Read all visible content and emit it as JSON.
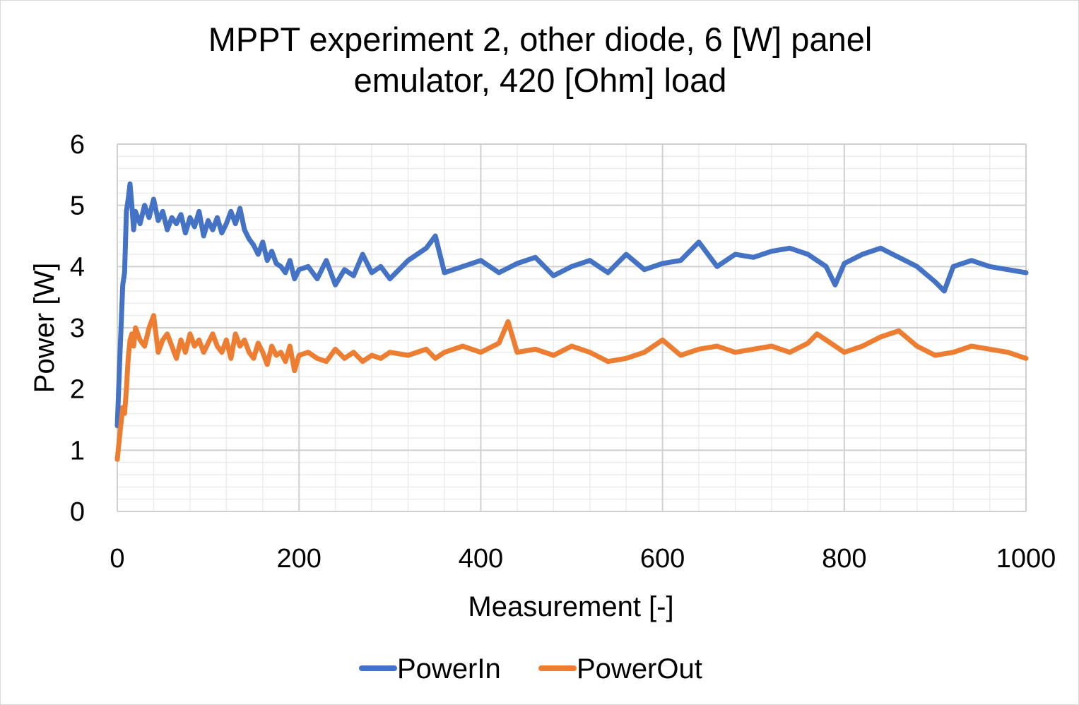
{
  "chart_data": {
    "type": "line",
    "title_lines": [
      "MPPT experiment 2, other diode, 6 [W] panel",
      "emulator, 420 [Ohm] load"
    ],
    "xlabel": "Measurement [-]",
    "ylabel": "Power [W]",
    "xlim": [
      0,
      1000
    ],
    "ylim": [
      0,
      6
    ],
    "xticks": [
      "0",
      "200",
      "400",
      "600",
      "800",
      "1000"
    ],
    "yticks": [
      "0",
      "1",
      "2",
      "3",
      "4",
      "5",
      "6"
    ],
    "grid": "major and minor",
    "legend_position": "bottom",
    "series": [
      {
        "name": "PowerIn",
        "color": "#4472c4",
        "x": [
          0,
          3,
          6,
          8,
          10,
          12,
          14,
          16,
          18,
          20,
          25,
          30,
          35,
          40,
          45,
          50,
          55,
          60,
          65,
          70,
          75,
          80,
          85,
          90,
          95,
          100,
          105,
          110,
          115,
          120,
          125,
          130,
          135,
          140,
          145,
          150,
          155,
          160,
          165,
          170,
          175,
          180,
          185,
          190,
          195,
          200,
          210,
          220,
          230,
          240,
          250,
          260,
          270,
          280,
          290,
          300,
          320,
          340,
          350,
          360,
          380,
          400,
          420,
          440,
          460,
          480,
          500,
          520,
          540,
          560,
          580,
          600,
          620,
          640,
          660,
          680,
          700,
          720,
          740,
          760,
          780,
          790,
          800,
          820,
          840,
          860,
          880,
          900,
          910,
          920,
          940,
          960,
          980,
          1000
        ],
        "values": [
          1.4,
          2.6,
          3.7,
          3.9,
          4.9,
          5.1,
          5.35,
          5.0,
          4.6,
          4.9,
          4.7,
          5.0,
          4.8,
          5.1,
          4.75,
          4.9,
          4.6,
          4.8,
          4.7,
          4.85,
          4.55,
          4.8,
          4.65,
          4.9,
          4.5,
          4.75,
          4.6,
          4.8,
          4.55,
          4.7,
          4.9,
          4.7,
          4.95,
          4.6,
          4.45,
          4.35,
          4.2,
          4.4,
          4.1,
          4.25,
          4.05,
          4.0,
          3.9,
          4.1,
          3.8,
          3.95,
          4.0,
          3.8,
          4.1,
          3.7,
          3.95,
          3.85,
          4.2,
          3.9,
          4.0,
          3.8,
          4.1,
          4.3,
          4.5,
          3.9,
          4.0,
          4.1,
          3.9,
          4.05,
          4.15,
          3.85,
          4.0,
          4.1,
          3.9,
          4.2,
          3.95,
          4.05,
          4.1,
          4.4,
          4.0,
          4.2,
          4.15,
          4.25,
          4.3,
          4.2,
          4.0,
          3.7,
          4.05,
          4.2,
          4.3,
          4.15,
          4.0,
          3.75,
          3.6,
          4.0,
          4.1,
          4.0,
          3.95,
          3.9
        ]
      },
      {
        "name": "PowerOut",
        "color": "#ed7d31",
        "x": [
          0,
          3,
          6,
          8,
          10,
          12,
          14,
          16,
          18,
          20,
          25,
          30,
          35,
          40,
          45,
          50,
          55,
          60,
          65,
          70,
          75,
          80,
          85,
          90,
          95,
          100,
          105,
          110,
          115,
          120,
          125,
          130,
          135,
          140,
          145,
          150,
          155,
          160,
          165,
          170,
          175,
          180,
          185,
          190,
          195,
          200,
          210,
          220,
          230,
          240,
          250,
          260,
          270,
          280,
          290,
          300,
          320,
          340,
          350,
          360,
          380,
          400,
          420,
          430,
          440,
          460,
          480,
          500,
          520,
          540,
          560,
          580,
          600,
          620,
          640,
          660,
          680,
          700,
          720,
          740,
          760,
          770,
          780,
          800,
          820,
          840,
          860,
          880,
          900,
          920,
          940,
          960,
          980,
          1000
        ],
        "values": [
          0.85,
          1.3,
          1.7,
          1.6,
          2.0,
          2.5,
          2.8,
          2.9,
          2.7,
          3.0,
          2.8,
          2.7,
          3.0,
          3.2,
          2.6,
          2.8,
          2.9,
          2.7,
          2.5,
          2.8,
          2.6,
          2.9,
          2.7,
          2.8,
          2.6,
          2.75,
          2.9,
          2.7,
          2.6,
          2.8,
          2.5,
          2.9,
          2.7,
          2.8,
          2.6,
          2.5,
          2.75,
          2.6,
          2.4,
          2.7,
          2.55,
          2.6,
          2.45,
          2.7,
          2.3,
          2.55,
          2.6,
          2.5,
          2.45,
          2.65,
          2.5,
          2.6,
          2.45,
          2.55,
          2.5,
          2.6,
          2.55,
          2.65,
          2.5,
          2.6,
          2.7,
          2.6,
          2.75,
          3.1,
          2.6,
          2.65,
          2.55,
          2.7,
          2.6,
          2.45,
          2.5,
          2.6,
          2.8,
          2.55,
          2.65,
          2.7,
          2.6,
          2.65,
          2.7,
          2.6,
          2.75,
          2.9,
          2.8,
          2.6,
          2.7,
          2.85,
          2.95,
          2.7,
          2.55,
          2.6,
          2.7,
          2.65,
          2.6,
          2.5
        ]
      }
    ]
  }
}
